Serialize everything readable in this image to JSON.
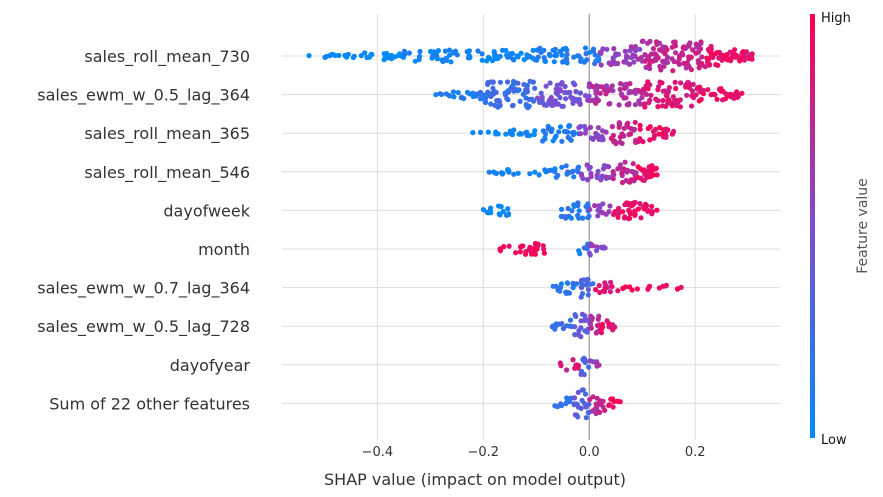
{
  "chart_data": {
    "type": "scatter",
    "subtype": "shap-beeswarm",
    "title": "",
    "xlabel": "SHAP value (impact on model output)",
    "ylabel": "",
    "xlim": [
      -0.58,
      0.36
    ],
    "xticks": [
      -0.4,
      -0.2,
      0.0,
      0.2
    ],
    "xtick_labels": [
      "−0.4",
      "−0.2",
      "0.0",
      "0.2"
    ],
    "grid": true,
    "colorbar": {
      "title": "Feature value",
      "high_label": "High",
      "low_label": "Low",
      "low_color": "#008bfb",
      "mid_color": "#7c4ed0",
      "high_color": "#ff0052"
    },
    "features": [
      {
        "name": "sales_roll_mean_730",
        "min": -0.53,
        "max": 0.31,
        "segments": [
          [
            -0.53,
            -0.35,
            0.25,
            0.0
          ],
          [
            -0.35,
            -0.1,
            0.4,
            0.05
          ],
          [
            -0.1,
            0.02,
            0.55,
            0.12
          ],
          [
            0.02,
            0.1,
            0.65,
            0.6
          ],
          [
            0.1,
            0.22,
            1.0,
            0.75
          ],
          [
            0.22,
            0.31,
            0.85,
            0.92
          ]
        ]
      },
      {
        "name": "sales_ewm_w_0.5_lag_364",
        "min": -0.29,
        "max": 0.29,
        "segments": [
          [
            -0.29,
            -0.2,
            0.35,
            0.15
          ],
          [
            -0.2,
            -0.1,
            0.9,
            0.25
          ],
          [
            -0.1,
            0.0,
            0.8,
            0.45
          ],
          [
            0.0,
            0.1,
            0.75,
            0.7
          ],
          [
            0.1,
            0.2,
            0.85,
            0.85
          ],
          [
            0.2,
            0.29,
            0.6,
            0.92
          ]
        ]
      },
      {
        "name": "sales_roll_mean_365",
        "min": -0.22,
        "max": 0.16,
        "segments": [
          [
            -0.22,
            -0.09,
            0.22,
            0.05
          ],
          [
            -0.09,
            -0.02,
            0.55,
            0.12
          ],
          [
            -0.02,
            0.04,
            0.45,
            0.55
          ],
          [
            0.04,
            0.09,
            0.75,
            0.75
          ],
          [
            0.09,
            0.16,
            0.6,
            0.92
          ]
        ]
      },
      {
        "name": "sales_roll_mean_546",
        "min": -0.19,
        "max": 0.13,
        "segments": [
          [
            -0.19,
            -0.08,
            0.22,
            0.05
          ],
          [
            -0.08,
            -0.02,
            0.4,
            0.12
          ],
          [
            -0.02,
            0.04,
            0.55,
            0.55
          ],
          [
            0.04,
            0.09,
            0.75,
            0.75
          ],
          [
            0.09,
            0.13,
            0.9,
            0.92
          ]
        ]
      },
      {
        "name": "dayofweek",
        "min": -0.2,
        "max": 0.13,
        "segments": [
          [
            -0.2,
            -0.15,
            0.4,
            0.02
          ],
          [
            -0.06,
            0.0,
            0.55,
            0.15
          ],
          [
            0.0,
            0.04,
            0.45,
            0.6
          ],
          [
            0.04,
            0.13,
            0.6,
            0.92
          ]
        ]
      },
      {
        "name": "month",
        "min": -0.17,
        "max": 0.03,
        "segments": [
          [
            -0.17,
            -0.08,
            0.4,
            0.96
          ],
          [
            -0.02,
            0.0,
            0.35,
            0.15
          ],
          [
            0.0,
            0.03,
            0.5,
            0.55
          ]
        ]
      },
      {
        "name": "sales_ewm_w_0.7_lag_364",
        "min": -0.07,
        "max": 0.18,
        "segments": [
          [
            -0.07,
            -0.02,
            0.45,
            0.15
          ],
          [
            -0.02,
            0.01,
            0.7,
            0.3
          ],
          [
            0.01,
            0.06,
            0.35,
            0.85
          ],
          [
            0.06,
            0.18,
            0.18,
            0.95
          ]
        ]
      },
      {
        "name": "sales_ewm_w_0.5_lag_728",
        "min": -0.07,
        "max": 0.05,
        "segments": [
          [
            -0.07,
            -0.03,
            0.45,
            0.2
          ],
          [
            -0.03,
            0.0,
            0.85,
            0.4
          ],
          [
            0.0,
            0.02,
            0.9,
            0.7
          ],
          [
            0.02,
            0.05,
            0.45,
            0.9
          ]
        ]
      },
      {
        "name": "dayofyear",
        "min": -0.06,
        "max": 0.02,
        "segments": [
          [
            -0.06,
            -0.02,
            0.35,
            0.85
          ],
          [
            -0.02,
            0.0,
            0.65,
            0.3
          ],
          [
            0.0,
            0.02,
            0.4,
            0.6
          ]
        ]
      },
      {
        "name": "Sum of 22 other features",
        "min": -0.07,
        "max": 0.06,
        "segments": [
          [
            -0.07,
            -0.03,
            0.4,
            0.2
          ],
          [
            -0.03,
            0.0,
            0.95,
            0.35
          ],
          [
            0.0,
            0.03,
            0.7,
            0.75
          ],
          [
            0.03,
            0.06,
            0.4,
            0.92
          ]
        ]
      }
    ]
  }
}
